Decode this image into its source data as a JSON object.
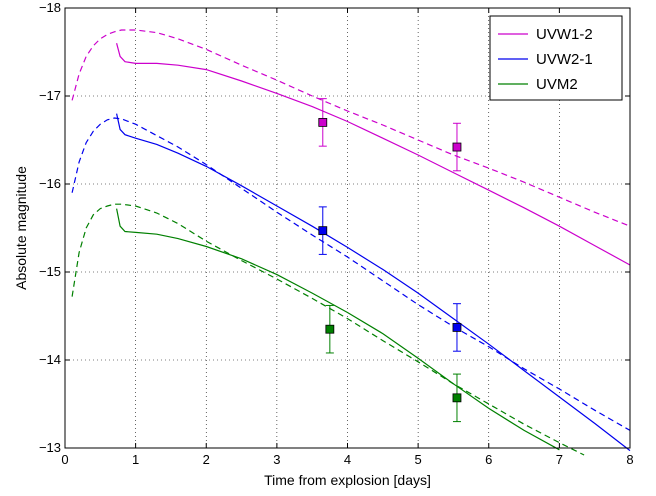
{
  "chart_data": {
    "type": "line",
    "title": "",
    "xlabel": "Time from explosion [days]",
    "ylabel": "Absolute magnitude",
    "xlim": [
      0,
      8
    ],
    "ylim": [
      -18,
      -13
    ],
    "y_inverted": true,
    "x_ticks": [
      0,
      1,
      2,
      3,
      4,
      5,
      6,
      7,
      8
    ],
    "y_ticks": [
      -18,
      -17,
      -16,
      -15,
      -14,
      -13
    ],
    "x_tick_labels": [
      "0",
      "1",
      "2",
      "3",
      "4",
      "5",
      "6",
      "7",
      "8"
    ],
    "y_tick_labels": [
      "−18",
      "−17",
      "−16",
      "−15",
      "−14",
      "−13"
    ],
    "grid": true,
    "grid_style": "dotted",
    "legend_position": "top-right",
    "legend": [
      {
        "label": "UVW1-2",
        "color": "#cc00cc"
      },
      {
        "label": "UVW2-1",
        "color": "#0000ee"
      },
      {
        "label": "UVM2",
        "color": "#008000"
      }
    ],
    "series": [
      {
        "color": "#cc00cc",
        "style": "solid",
        "x": [
          0.73,
          0.78,
          0.85,
          1.0,
          1.3,
          1.6,
          2.0,
          2.5,
          3.0,
          3.5,
          4.0,
          4.5,
          5.0,
          5.5,
          6.0,
          6.5,
          7.0,
          7.5,
          8.0
        ],
        "y": [
          -17.6,
          -17.45,
          -17.39,
          -17.37,
          -17.37,
          -17.35,
          -17.3,
          -17.17,
          -17.03,
          -16.88,
          -16.71,
          -16.52,
          -16.33,
          -16.13,
          -15.93,
          -15.73,
          -15.52,
          -15.3,
          -15.08
        ]
      },
      {
        "color": "#cc00cc",
        "style": "dashed",
        "x": [
          0.1,
          0.2,
          0.3,
          0.4,
          0.5,
          0.6,
          0.7,
          0.8,
          1.0,
          1.3,
          1.6,
          2.0,
          2.5,
          3.0,
          3.5,
          4.0,
          4.5,
          5.0,
          5.5,
          6.0,
          6.5,
          7.0,
          7.5,
          8.0
        ],
        "y": [
          -16.95,
          -17.25,
          -17.45,
          -17.57,
          -17.65,
          -17.7,
          -17.73,
          -17.75,
          -17.75,
          -17.72,
          -17.65,
          -17.53,
          -17.35,
          -17.18,
          -17.0,
          -16.83,
          -16.67,
          -16.5,
          -16.33,
          -16.18,
          -16.02,
          -15.85,
          -15.68,
          -15.52
        ]
      },
      {
        "color": "#0000ee",
        "style": "solid",
        "x": [
          0.73,
          0.78,
          0.85,
          1.0,
          1.3,
          1.6,
          2.0,
          2.5,
          3.0,
          3.5,
          4.0,
          4.5,
          5.0,
          5.5,
          6.0,
          6.5,
          7.0,
          7.5,
          8.0
        ],
        "y": [
          -16.8,
          -16.62,
          -16.56,
          -16.52,
          -16.45,
          -16.35,
          -16.2,
          -15.98,
          -15.75,
          -15.52,
          -15.28,
          -15.03,
          -14.76,
          -14.47,
          -14.18,
          -13.88,
          -13.58,
          -13.28,
          -12.97
        ]
      },
      {
        "color": "#0000ee",
        "style": "dashed",
        "x": [
          0.1,
          0.2,
          0.3,
          0.4,
          0.5,
          0.6,
          0.7,
          0.8,
          1.0,
          1.3,
          1.6,
          2.0,
          2.5,
          3.0,
          3.5,
          4.0,
          4.5,
          5.0,
          5.5,
          6.0,
          6.5,
          7.0,
          7.5,
          8.0
        ],
        "y": [
          -15.9,
          -16.25,
          -16.47,
          -16.6,
          -16.68,
          -16.73,
          -16.75,
          -16.74,
          -16.68,
          -16.55,
          -16.42,
          -16.22,
          -15.95,
          -15.68,
          -15.42,
          -15.17,
          -14.9,
          -14.63,
          -14.38,
          -14.15,
          -13.9,
          -13.67,
          -13.43,
          -13.2
        ]
      },
      {
        "color": "#008000",
        "style": "solid",
        "x": [
          0.73,
          0.78,
          0.85,
          1.0,
          1.3,
          1.6,
          2.0,
          2.5,
          3.0,
          3.5,
          4.0,
          4.5,
          5.0,
          5.5,
          6.0,
          6.5,
          7.0
        ],
        "y": [
          -15.72,
          -15.52,
          -15.46,
          -15.45,
          -15.43,
          -15.38,
          -15.29,
          -15.15,
          -14.97,
          -14.76,
          -14.54,
          -14.3,
          -14.02,
          -13.73,
          -13.45,
          -13.2,
          -12.98
        ]
      },
      {
        "color": "#008000",
        "style": "dashed",
        "x": [
          0.1,
          0.2,
          0.3,
          0.4,
          0.5,
          0.6,
          0.7,
          0.8,
          1.0,
          1.3,
          1.6,
          2.0,
          2.5,
          3.0,
          3.5,
          4.0,
          4.5,
          5.0,
          5.5,
          6.0,
          6.5,
          7.0,
          7.35
        ],
        "y": [
          -14.72,
          -15.22,
          -15.5,
          -15.65,
          -15.72,
          -15.75,
          -15.77,
          -15.77,
          -15.75,
          -15.67,
          -15.55,
          -15.35,
          -15.13,
          -14.92,
          -14.7,
          -14.47,
          -14.22,
          -13.98,
          -13.73,
          -13.5,
          -13.27,
          -13.06,
          -12.92
        ]
      }
    ],
    "points": [
      {
        "color": "#cc00cc",
        "x": 3.65,
        "y": -16.7,
        "err": 0.27
      },
      {
        "color": "#cc00cc",
        "x": 5.55,
        "y": -16.42,
        "err": 0.27
      },
      {
        "color": "#0000ee",
        "x": 3.65,
        "y": -15.47,
        "err": 0.27
      },
      {
        "color": "#0000ee",
        "x": 5.55,
        "y": -14.37,
        "err": 0.27
      },
      {
        "color": "#008000",
        "x": 3.75,
        "y": -14.35,
        "err": 0.27
      },
      {
        "color": "#008000",
        "x": 5.55,
        "y": -13.57,
        "err": 0.27
      }
    ]
  }
}
